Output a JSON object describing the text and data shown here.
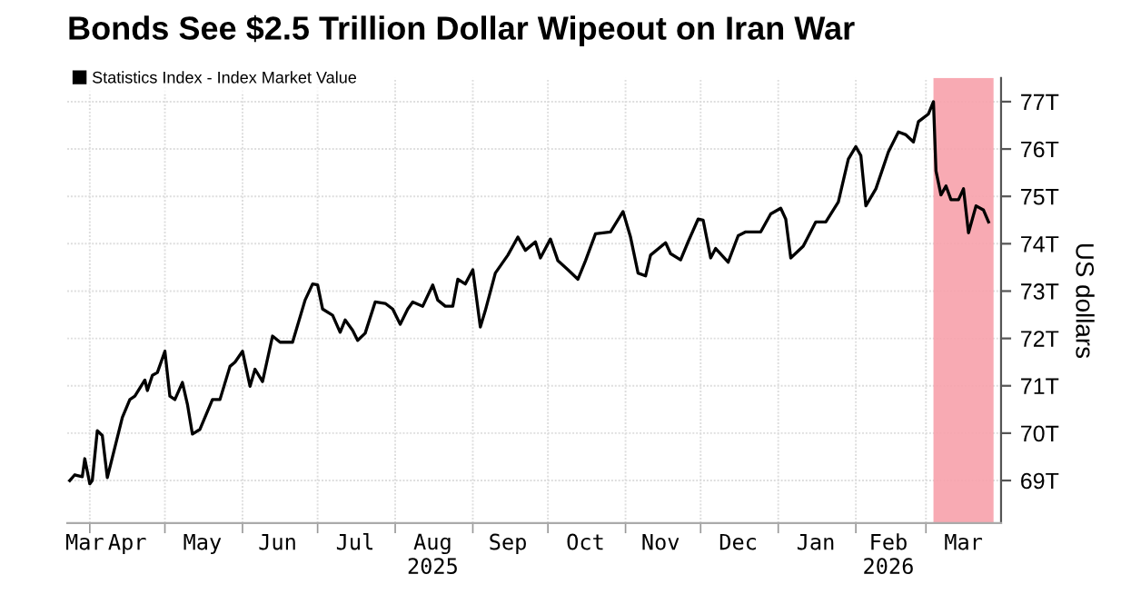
{
  "chart_data": {
    "type": "line",
    "title": "Bonds See $2.5 Trillion Dollar Wipeout on Iran War",
    "ylabel": "US dollars",
    "x": [
      "2025-03-24",
      "2025-03-26",
      "2025-03-29",
      "2025-03-30",
      "2025-04-01",
      "2025-04-02",
      "2025-04-04",
      "2025-04-06",
      "2025-04-08",
      "2025-04-14",
      "2025-04-17",
      "2025-04-19",
      "2025-04-23",
      "2025-04-24",
      "2025-04-26",
      "2025-04-28",
      "2025-05-01",
      "2025-05-03",
      "2025-05-05",
      "2025-05-08",
      "2025-05-10",
      "2025-05-12",
      "2025-05-15",
      "2025-05-20",
      "2025-05-23",
      "2025-05-27",
      "2025-05-29",
      "2025-06-01",
      "2025-06-04",
      "2025-06-06",
      "2025-06-09",
      "2025-06-13",
      "2025-06-16",
      "2025-06-21",
      "2025-06-26",
      "2025-06-29",
      "2025-07-01",
      "2025-07-03",
      "2025-07-07",
      "2025-07-10",
      "2025-07-12",
      "2025-07-15",
      "2025-07-17",
      "2025-07-20",
      "2025-07-24",
      "2025-07-28",
      "2025-07-31",
      "2025-08-03",
      "2025-08-06",
      "2025-08-08",
      "2025-08-12",
      "2025-08-16",
      "2025-08-18",
      "2025-08-21",
      "2025-08-24",
      "2025-08-26",
      "2025-08-29",
      "2025-09-01",
      "2025-09-04",
      "2025-09-06",
      "2025-09-10",
      "2025-09-15",
      "2025-09-19",
      "2025-09-22",
      "2025-09-26",
      "2025-09-28",
      "2025-10-02",
      "2025-10-05",
      "2025-10-09",
      "2025-10-13",
      "2025-10-16",
      "2025-10-20",
      "2025-10-26",
      "2025-10-31",
      "2025-11-03",
      "2025-11-06",
      "2025-11-09",
      "2025-11-11",
      "2025-11-17",
      "2025-11-19",
      "2025-11-23",
      "2025-11-26",
      "2025-11-30",
      "2025-12-02",
      "2025-12-05",
      "2025-12-07",
      "2025-12-12",
      "2025-12-16",
      "2025-12-19",
      "2025-12-25",
      "2025-12-29",
      "2026-01-02",
      "2026-01-04",
      "2026-01-06",
      "2026-01-11",
      "2026-01-16",
      "2026-01-20",
      "2026-01-25",
      "2026-01-29",
      "2026-02-01",
      "2026-02-03",
      "2026-02-05",
      "2026-02-09",
      "2026-02-14",
      "2026-02-18",
      "2026-02-21",
      "2026-02-24",
      "2026-02-26",
      "2026-03-02",
      "2026-03-04",
      "2026-03-05",
      "2026-03-07",
      "2026-03-09",
      "2026-03-11",
      "2026-03-14",
      "2026-03-16",
      "2026-03-18",
      "2026-03-21",
      "2026-03-24",
      "2026-03-26"
    ],
    "series": [
      {
        "name": "Statistics Index - Index Market Value",
        "color": "#000000",
        "values": [
          69.0,
          69.12,
          69.08,
          69.46,
          68.93,
          69.0,
          70.05,
          69.95,
          69.06,
          70.33,
          70.71,
          70.78,
          71.12,
          70.9,
          71.22,
          71.28,
          71.73,
          70.78,
          70.71,
          71.07,
          70.61,
          69.98,
          70.08,
          70.71,
          70.71,
          71.41,
          71.5,
          71.73,
          70.99,
          71.35,
          71.09,
          72.05,
          71.92,
          71.92,
          72.81,
          73.15,
          73.13,
          72.62,
          72.49,
          72.13,
          72.39,
          72.17,
          71.96,
          72.11,
          72.77,
          72.74,
          72.62,
          72.3,
          72.62,
          72.77,
          72.68,
          73.13,
          72.81,
          72.68,
          72.68,
          73.25,
          73.15,
          73.45,
          72.24,
          72.59,
          73.38,
          73.76,
          74.14,
          73.86,
          74.04,
          73.7,
          74.1,
          73.64,
          73.45,
          73.25,
          73.64,
          74.21,
          74.25,
          74.68,
          74.14,
          73.38,
          73.32,
          73.76,
          74.02,
          73.79,
          73.66,
          74.04,
          74.52,
          74.5,
          73.7,
          73.9,
          73.61,
          74.17,
          74.25,
          74.25,
          74.63,
          74.75,
          74.52,
          73.7,
          73.95,
          74.46,
          74.46,
          74.88,
          75.79,
          76.05,
          75.86,
          74.8,
          75.16,
          75.94,
          76.36,
          76.3,
          76.15,
          76.58,
          76.74,
          77.0,
          75.54,
          75.03,
          75.22,
          74.93,
          74.93,
          75.16,
          74.23,
          74.8,
          74.71,
          74.46
        ]
      }
    ],
    "xlim": [
      "2025-03-23",
      "2026-03-31"
    ],
    "xticks": [
      {
        "value": "2025-03-30",
        "label": "Mar"
      },
      {
        "value": "2025-04-16",
        "label": "Apr"
      },
      {
        "value": "2025-05-16",
        "label": "May"
      },
      {
        "value": "2025-06-15",
        "label": "Jun"
      },
      {
        "value": "2025-07-16",
        "label": "Jul"
      },
      {
        "value": "2025-08-16",
        "label": "Aug\n2025"
      },
      {
        "value": "2025-09-15",
        "label": "Sep"
      },
      {
        "value": "2025-10-16",
        "label": "Oct"
      },
      {
        "value": "2025-11-15",
        "label": "Nov"
      },
      {
        "value": "2025-12-16",
        "label": "Dec"
      },
      {
        "value": "2026-01-16",
        "label": "Jan"
      },
      {
        "value": "2026-02-14",
        "label": "Feb\n2026"
      },
      {
        "value": "2026-03-16",
        "label": "Mar"
      },
      {
        "value": "2025-04-01",
        "label": null
      },
      {
        "value": "2025-05-01",
        "label": null
      },
      {
        "value": "2025-06-01",
        "label": null
      },
      {
        "value": "2025-07-01",
        "label": null
      },
      {
        "value": "2025-08-01",
        "label": null
      },
      {
        "value": "2025-09-01",
        "label": null
      },
      {
        "value": "2025-10-01",
        "label": null
      },
      {
        "value": "2025-11-01",
        "label": null
      },
      {
        "value": "2025-12-01",
        "label": null
      },
      {
        "value": "2026-01-01",
        "label": null
      },
      {
        "value": "2026-02-01",
        "label": null
      },
      {
        "value": "2026-03-01",
        "label": null
      }
    ],
    "ylim": [
      68.1,
      77.5
    ],
    "yticks": [
      {
        "value": 69,
        "label": "69T"
      },
      {
        "value": 70,
        "label": "70T"
      },
      {
        "value": 71,
        "label": "71T"
      },
      {
        "value": 72,
        "label": "72T"
      },
      {
        "value": 73,
        "label": "73T"
      },
      {
        "value": 74,
        "label": "74T"
      },
      {
        "value": 75,
        "label": "75T"
      },
      {
        "value": 76,
        "label": "76T"
      },
      {
        "value": 77,
        "label": "77T"
      }
    ],
    "bands": [
      {
        "axis": "x",
        "from": "2026-03-04",
        "to": "2026-03-28",
        "color": "#f7a1ab"
      }
    ],
    "grid": true,
    "legend": "top left",
    "marker": "none",
    "line_style": "solid"
  }
}
